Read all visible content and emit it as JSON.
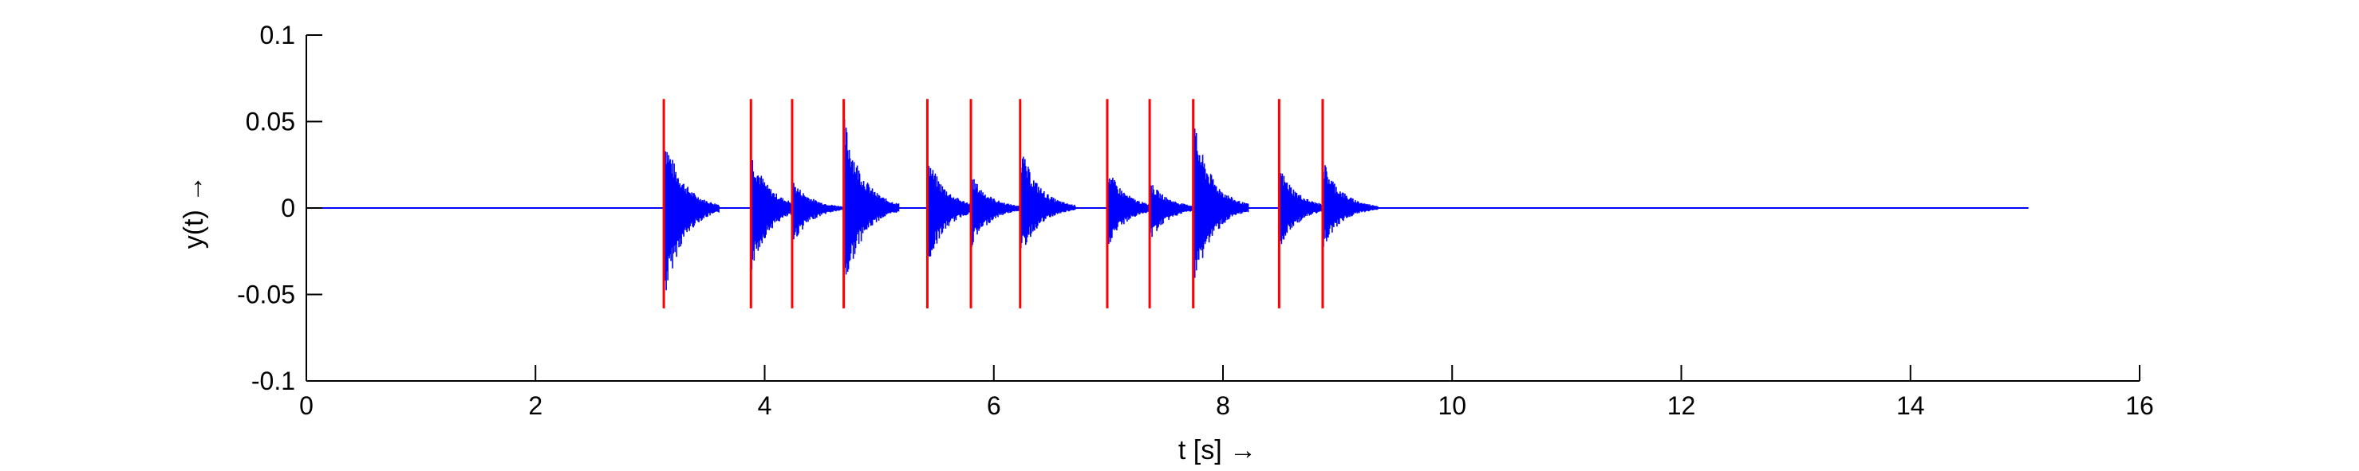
{
  "chart_data": {
    "type": "line",
    "title": "",
    "xlabel": "t [s] →",
    "ylabel": "y(t)  →",
    "xlim": [
      0,
      16
    ],
    "ylim": [
      -0.1,
      0.1
    ],
    "x_ticks": [
      0,
      2,
      4,
      6,
      8,
      10,
      12,
      14,
      16
    ],
    "x_tick_labels": [
      "0",
      "2",
      "4",
      "6",
      "8",
      "10",
      "12",
      "14",
      "16"
    ],
    "y_ticks": [
      0.1,
      0.05,
      0,
      -0.05,
      -0.1
    ],
    "y_tick_labels": [
      "0.1",
      "0.05",
      "0",
      "-0.05",
      "-0.1"
    ],
    "grid": false,
    "signal": {
      "color": "#0000ff",
      "t_start": 0,
      "t_end": 15.03,
      "baseline": 0,
      "decay_time_s": 0.16
    },
    "onset_markers": {
      "color": "#ff0000",
      "y_range": [
        -0.058,
        0.063
      ]
    },
    "onsets": [
      {
        "t": 3.12,
        "peak_pos": 0.046,
        "peak_neg": -0.057
      },
      {
        "t": 3.88,
        "peak_pos": 0.034,
        "peak_neg": -0.038
      },
      {
        "t": 4.24,
        "peak_pos": 0.017,
        "peak_neg": -0.022
      },
      {
        "t": 4.69,
        "peak_pos": 0.055,
        "peak_neg": -0.05
      },
      {
        "t": 5.42,
        "peak_pos": 0.031,
        "peak_neg": -0.035
      },
      {
        "t": 5.8,
        "peak_pos": 0.02,
        "peak_neg": -0.024
      },
      {
        "t": 6.23,
        "peak_pos": 0.037,
        "peak_neg": -0.03
      },
      {
        "t": 6.99,
        "peak_pos": 0.024,
        "peak_neg": -0.024
      },
      {
        "t": 7.36,
        "peak_pos": 0.016,
        "peak_neg": -0.02
      },
      {
        "t": 7.74,
        "peak_pos": 0.052,
        "peak_neg": -0.05
      },
      {
        "t": 8.49,
        "peak_pos": 0.025,
        "peak_neg": -0.025
      },
      {
        "t": 8.87,
        "peak_pos": 0.029,
        "peak_neg": -0.024
      }
    ]
  }
}
